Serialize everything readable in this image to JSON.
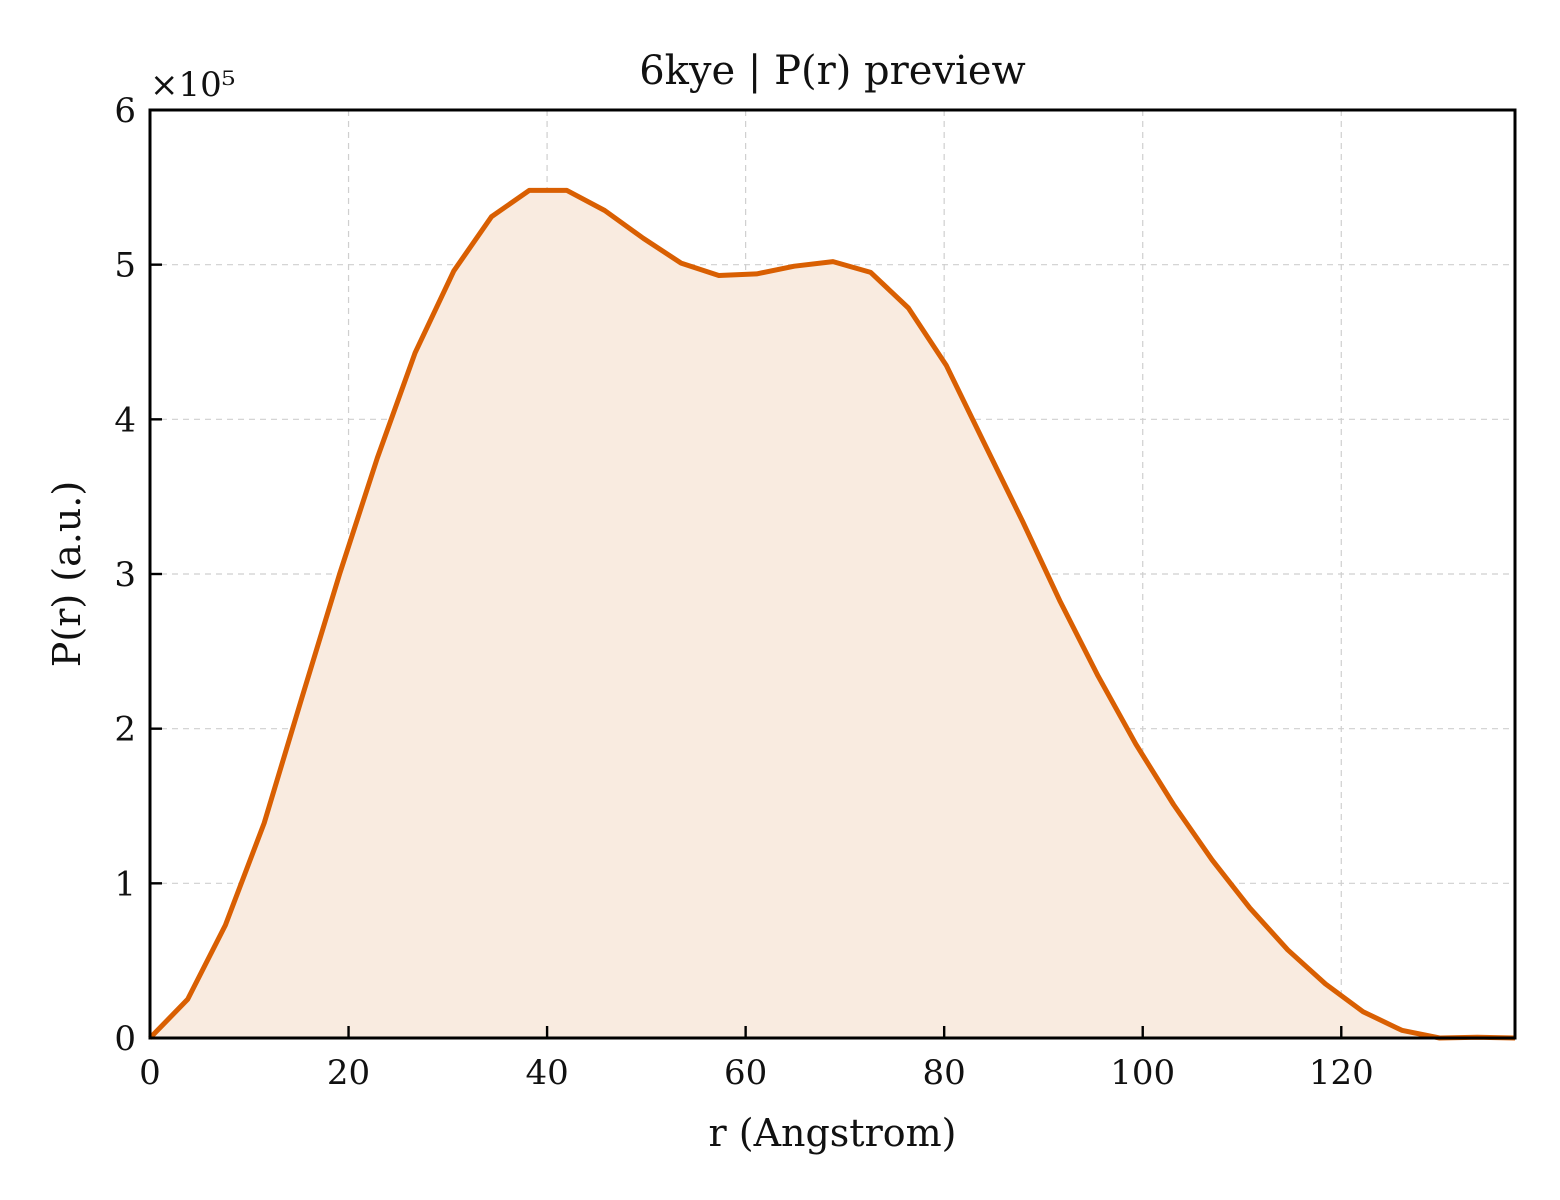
{
  "chart_data": {
    "type": "area",
    "title": "6kye | P(r) preview",
    "xlabel": "r (Angstrom)",
    "ylabel": "P(r) (a.u.)",
    "y_multiplier_label": "×10⁵",
    "y_scale": 100000,
    "xlim": [
      0,
      137.5
    ],
    "ylim": [
      0,
      600000
    ],
    "x_ticks": [
      0,
      20,
      40,
      60,
      80,
      100,
      120
    ],
    "x_tick_labels": [
      "0",
      "20",
      "40",
      "60",
      "80",
      "100",
      "120"
    ],
    "y_ticks": [
      0,
      100000,
      200000,
      300000,
      400000,
      500000,
      600000
    ],
    "y_tick_labels": [
      "0",
      "1",
      "2",
      "3",
      "4",
      "5",
      "6"
    ],
    "grid": true,
    "line_color": "#d95f02",
    "fill_color": "#f9ebe0",
    "series": [
      {
        "x": [
          0,
          3.8,
          7.6,
          11.5,
          15.3,
          19.1,
          22.9,
          26.7,
          30.6,
          34.4,
          38.2,
          42.0,
          45.8,
          49.7,
          53.5,
          57.3,
          61.1,
          64.9,
          68.8,
          72.6,
          76.4,
          80.2,
          84.0,
          87.9,
          91.7,
          95.5,
          99.3,
          103.1,
          107.0,
          110.8,
          114.6,
          118.4,
          122.2,
          126.1,
          129.9,
          133.7,
          137.5
        ],
        "y": [
          0,
          25000,
          73000,
          139000,
          220000,
          300000,
          375000,
          443000,
          496000,
          531000,
          548000,
          548000,
          535000,
          517000,
          501000,
          493000,
          494000,
          499000,
          502000,
          495000,
          472000,
          435000,
          385000,
          334000,
          282000,
          234000,
          190000,
          151000,
          115000,
          84000,
          57000,
          35000,
          17000,
          5000,
          0,
          500,
          0
        ]
      }
    ]
  }
}
